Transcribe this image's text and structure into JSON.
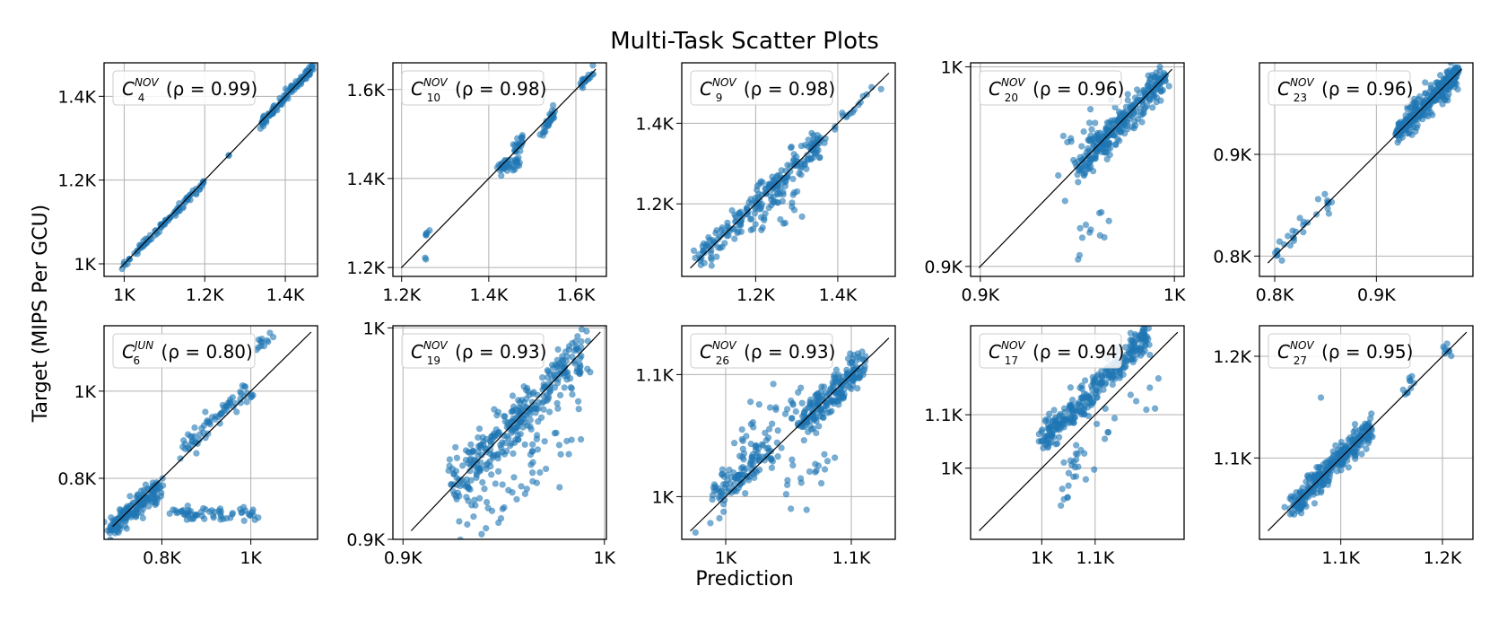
{
  "figure": {
    "title": "Multi-Task Scatter Plots",
    "xlabel": "Prediction",
    "ylabel": "Target (MIPS Per GCU)"
  },
  "colors": {
    "point": "#1f77b4",
    "diagonal": "#000000",
    "grid": "#b0b0b0"
  },
  "chart_data": [
    {
      "type": "scatter",
      "name": "C",
      "sup": "NOV",
      "sub": "4",
      "rho": "(ρ = 0.99)",
      "xlim": [
        950,
        1480
      ],
      "ylim": [
        970,
        1480
      ],
      "xticks": [
        [
          1000,
          "1K"
        ],
        [
          1200,
          "1.2K"
        ],
        [
          1400,
          "1.4K"
        ]
      ],
      "yticks": [
        [
          1000,
          "1K"
        ],
        [
          1200,
          "1.2K"
        ],
        [
          1400,
          "1.4K"
        ]
      ],
      "clusters": [
        {
          "x0": 990,
          "y0": 990,
          "x1": 1200,
          "y1": 1195,
          "n": 90,
          "spread": 5
        },
        {
          "x0": 1340,
          "y0": 1335,
          "x1": 1470,
          "y1": 1470,
          "n": 110,
          "spread": 5
        },
        {
          "x0": 1260,
          "y0": 1260,
          "x1": 1260,
          "y1": 1260,
          "n": 2,
          "spread": 2
        }
      ]
    },
    {
      "type": "scatter",
      "name": "C",
      "sup": "NOV",
      "sub": "10",
      "rho": "(ρ = 0.98)",
      "xlim": [
        1180,
        1670
      ],
      "ylim": [
        1180,
        1660
      ],
      "xticks": [
        [
          1200,
          "1.2K"
        ],
        [
          1400,
          "1.4K"
        ],
        [
          1600,
          "1.6K"
        ]
      ],
      "yticks": [
        [
          1200,
          "1.2K"
        ],
        [
          1400,
          "1.4K"
        ],
        [
          1600,
          "1.6K"
        ]
      ],
      "clusters": [
        {
          "x0": 1420,
          "y0": 1420,
          "x1": 1470,
          "y1": 1440,
          "n": 35,
          "spread": 8
        },
        {
          "x0": 1460,
          "y0": 1470,
          "x1": 1480,
          "y1": 1490,
          "n": 20,
          "spread": 6
        },
        {
          "x0": 1520,
          "y0": 1500,
          "x1": 1550,
          "y1": 1550,
          "n": 30,
          "spread": 8
        },
        {
          "x0": 1610,
          "y0": 1610,
          "x1": 1640,
          "y1": 1640,
          "n": 20,
          "spread": 6
        },
        {
          "x0": 1255,
          "y0": 1275,
          "x1": 1265,
          "y1": 1280,
          "n": 5,
          "spread": 3
        },
        {
          "x0": 1255,
          "y0": 1205,
          "x1": 1255,
          "y1": 1230,
          "n": 2,
          "spread": 2
        }
      ]
    },
    {
      "type": "scatter",
      "name": "C",
      "sup": "NOV",
      "sub": "9",
      "rho": "(ρ = 0.98)",
      "xlim": [
        1020,
        1540
      ],
      "ylim": [
        1020,
        1550
      ],
      "xticks": [
        [
          1200,
          "1.2K"
        ],
        [
          1400,
          "1.4K"
        ]
      ],
      "yticks": [
        [
          1200,
          "1.2K"
        ],
        [
          1400,
          "1.4K"
        ]
      ],
      "clusters": [
        {
          "x0": 1060,
          "y0": 1060,
          "x1": 1360,
          "y1": 1360,
          "n": 220,
          "spread": 20
        },
        {
          "x0": 1200,
          "y0": 1160,
          "x1": 1300,
          "y1": 1220,
          "n": 25,
          "spread": 25
        },
        {
          "x0": 1380,
          "y0": 1380,
          "x1": 1510,
          "y1": 1510,
          "n": 15,
          "spread": 6
        }
      ]
    },
    {
      "type": "scatter",
      "name": "C",
      "sup": "NOV",
      "sub": "20",
      "rho": "(ρ = 0.96)",
      "xlim": [
        895,
        1005
      ],
      "ylim": [
        895,
        1002
      ],
      "xticks": [
        [
          900,
          "0.9K"
        ],
        [
          1000,
          "1K"
        ]
      ],
      "yticks": [
        [
          900,
          "0.9K"
        ],
        [
          1000,
          "1K"
        ]
      ],
      "clusters": [
        {
          "x0": 950,
          "y0": 948,
          "x1": 995,
          "y1": 995,
          "n": 280,
          "spread": 4
        },
        {
          "x0": 945,
          "y0": 955,
          "x1": 975,
          "y1": 980,
          "n": 30,
          "spread": 6
        },
        {
          "x0": 950,
          "y0": 905,
          "x1": 965,
          "y1": 930,
          "n": 12,
          "spread": 5
        }
      ]
    },
    {
      "type": "scatter",
      "name": "C",
      "sup": "NOV",
      "sub": "23",
      "rho": "(ρ = 0.96)",
      "xlim": [
        785,
        995
      ],
      "ylim": [
        780,
        990
      ],
      "xticks": [
        [
          800,
          "0.8K"
        ],
        [
          900,
          "0.9K"
        ]
      ],
      "yticks": [
        [
          800,
          "0.8K"
        ],
        [
          900,
          "0.9K"
        ]
      ],
      "clusters": [
        {
          "x0": 920,
          "y0": 920,
          "x1": 980,
          "y1": 980,
          "n": 320,
          "spread": 6
        },
        {
          "x0": 800,
          "y0": 800,
          "x1": 855,
          "y1": 855,
          "n": 30,
          "spread": 6
        }
      ]
    },
    {
      "type": "scatter",
      "name": "C",
      "sup": "JUN",
      "sub": "6",
      "rho": "(ρ = 0.80)",
      "xlim": [
        670,
        1150
      ],
      "ylim": [
        660,
        1150
      ],
      "xticks": [
        [
          800,
          "0.8K"
        ],
        [
          1000,
          "1K"
        ]
      ],
      "yticks": [
        [
          800,
          "0.8K"
        ],
        [
          1000,
          "1K"
        ]
      ],
      "clusters": [
        {
          "x0": 680,
          "y0": 680,
          "x1": 800,
          "y1": 790,
          "n": 160,
          "spread": 12
        },
        {
          "x0": 820,
          "y0": 720,
          "x1": 1020,
          "y1": 720,
          "n": 60,
          "spread": 8
        },
        {
          "x0": 840,
          "y0": 860,
          "x1": 1000,
          "y1": 1010,
          "n": 70,
          "spread": 15
        },
        {
          "x0": 1010,
          "y0": 1100,
          "x1": 1050,
          "y1": 1125,
          "n": 12,
          "spread": 8
        },
        {
          "x0": 740,
          "y0": 720,
          "x1": 790,
          "y1": 760,
          "n": 15,
          "spread": 10
        }
      ]
    },
    {
      "type": "scatter",
      "name": "C",
      "sup": "NOV",
      "sub": "19",
      "rho": "(ρ = 0.93)",
      "xlim": [
        895,
        1001
      ],
      "ylim": [
        900,
        1001
      ],
      "xticks": [
        [
          900,
          "0.9K"
        ],
        [
          1000,
          "1K"
        ]
      ],
      "yticks": [
        [
          900,
          "0.9K"
        ],
        [
          1000,
          "1K"
        ]
      ],
      "clusters": [
        {
          "x0": 925,
          "y0": 925,
          "x1": 990,
          "y1": 990,
          "n": 300,
          "spread": 6
        },
        {
          "x0": 925,
          "y0": 910,
          "x1": 970,
          "y1": 930,
          "n": 40,
          "spread": 8
        },
        {
          "x0": 960,
          "y0": 940,
          "x1": 985,
          "y1": 960,
          "n": 25,
          "spread": 8
        }
      ]
    },
    {
      "type": "scatter",
      "name": "C",
      "sup": "NOV",
      "sub": "26",
      "rho": "(ρ = 0.93)",
      "xlim": [
        965,
        1135
      ],
      "ylim": [
        965,
        1140
      ],
      "xticks": [
        [
          1000,
          "1K"
        ],
        [
          1100,
          "1.1K"
        ]
      ],
      "yticks": [
        [
          1000,
          "1K"
        ],
        [
          1100,
          "1.1K"
        ]
      ],
      "clusters": [
        {
          "x0": 990,
          "y0": 1000,
          "x1": 1040,
          "y1": 1040,
          "n": 110,
          "spread": 7
        },
        {
          "x0": 1060,
          "y0": 1060,
          "x1": 1110,
          "y1": 1110,
          "n": 200,
          "spread": 7
        },
        {
          "x0": 1010,
          "y0": 1040,
          "x1": 1060,
          "y1": 1080,
          "n": 35,
          "spread": 12
        },
        {
          "x0": 1040,
          "y0": 1000,
          "x1": 1090,
          "y1": 1040,
          "n": 20,
          "spread": 12
        },
        {
          "x0": 975,
          "y0": 975,
          "x1": 1000,
          "y1": 985,
          "n": 4,
          "spread": 5
        }
      ]
    },
    {
      "type": "scatter",
      "name": "C",
      "sup": "NOV",
      "sub": "17",
      "rho": "(ρ = 0.94)",
      "xlim": [
        1040,
        1160
      ],
      "ylim": [
        1040,
        1160
      ],
      "xticks": [
        [
          1080,
          "1K"
        ],
        [
          1110,
          "1.1K"
        ]
      ],
      "yticks": [
        [
          1080,
          "1K"
        ],
        [
          1110,
          "1.1K"
        ]
      ],
      "clusters": [
        {
          "x0": 1080,
          "y0": 1095,
          "x1": 1140,
          "y1": 1155,
          "n": 300,
          "spread": 4
        },
        {
          "x0": 1090,
          "y0": 1060,
          "x1": 1100,
          "y1": 1090,
          "n": 20,
          "spread": 5
        },
        {
          "x0": 1100,
          "y0": 1080,
          "x1": 1145,
          "y1": 1125,
          "n": 15,
          "spread": 7
        }
      ]
    },
    {
      "type": "scatter",
      "name": "C",
      "sup": "NOV",
      "sub": "27",
      "rho": "(ρ = 0.95)",
      "xlim": [
        1020,
        1230
      ],
      "ylim": [
        1020,
        1230
      ],
      "xticks": [
        [
          1100,
          "1.1K"
        ],
        [
          1200,
          "1.2K"
        ]
      ],
      "yticks": [
        [
          1100,
          "1.1K"
        ],
        [
          1200,
          "1.2K"
        ]
      ],
      "clusters": [
        {
          "x0": 1050,
          "y0": 1050,
          "x1": 1130,
          "y1": 1130,
          "n": 320,
          "spread": 6
        },
        {
          "x0": 1160,
          "y0": 1160,
          "x1": 1175,
          "y1": 1185,
          "n": 10,
          "spread": 5
        },
        {
          "x0": 1200,
          "y0": 1200,
          "x1": 1210,
          "y1": 1210,
          "n": 8,
          "spread": 4
        },
        {
          "x0": 1080,
          "y0": 1160,
          "x1": 1080,
          "y1": 1160,
          "n": 1,
          "spread": 1
        }
      ]
    }
  ]
}
